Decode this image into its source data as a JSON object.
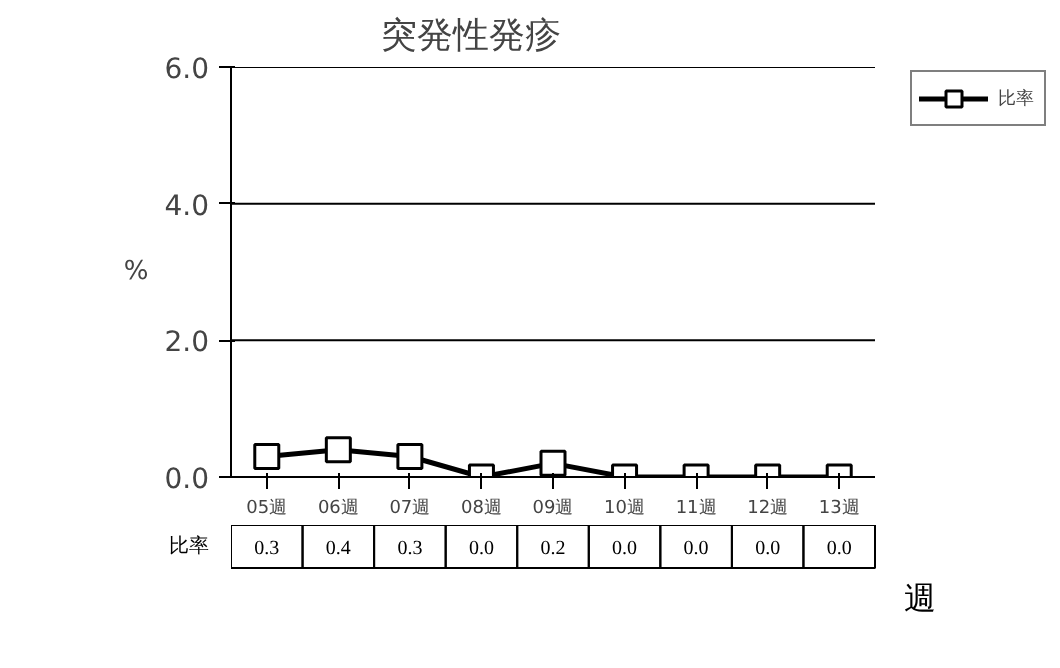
{
  "chart_data": {
    "type": "line",
    "title": "突発性発疹",
    "ylabel": "%",
    "xlabel": "週",
    "categories": [
      "05週",
      "06週",
      "07週",
      "08週",
      "09週",
      "10週",
      "11週",
      "12週",
      "13週"
    ],
    "series": [
      {
        "name": "比率",
        "color": "#000000",
        "values": [
          0.3,
          0.4,
          0.3,
          0.0,
          0.2,
          0.0,
          0.0,
          0.0,
          0.0
        ],
        "value_labels": [
          "0.3",
          "0.4",
          "0.3",
          "0.0",
          "0.2",
          "0.0",
          "0.0",
          "0.0",
          "0.0"
        ]
      }
    ],
    "ylim": [
      0,
      6
    ],
    "yticks": [
      {
        "value": 0,
        "label": "0.0"
      },
      {
        "value": 2,
        "label": "2.0"
      },
      {
        "value": 4,
        "label": "4.0"
      },
      {
        "value": 6,
        "label": "6.0"
      }
    ],
    "grid": "y",
    "legend": "top right",
    "marker": "square",
    "line_style": "solid"
  }
}
